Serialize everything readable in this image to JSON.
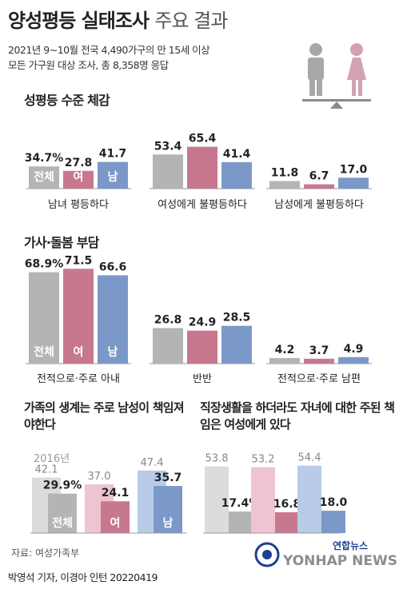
{
  "header": {
    "title_main": "양성평등 실태조사",
    "title_sub": "주요 결과",
    "line1": "2021년 9~10월 전국 4,490가구의 만 15세 이상",
    "line2": "모든 가구원 대상 조사, 총 8,358명 응답"
  },
  "sections": {
    "s1_title": "성평등 수준 체감",
    "s2_title": "가사·돌봄 부담",
    "q1_title": "가족의 생계는 주로 남성이 책임져야한다",
    "q2_title": "직장생활을 하더라도 자녀에 대한 주된 책임은 여성에게 있다"
  },
  "series_labels": [
    "전체",
    "여",
    "남"
  ],
  "colors": {
    "total": "#b4b4b4",
    "female": "#c7788f",
    "male": "#7b99c8",
    "total_light": "#dcdcdc",
    "female_light": "#efc4d1",
    "male_light": "#b9cbe7",
    "baseline": "#999999"
  },
  "chart_data": [
    {
      "type": "bar",
      "title": "성평등 수준 체감",
      "categories": [
        "남녀 평등하다",
        "여성에게 불평등하다",
        "남성에게 불평등하다"
      ],
      "series": [
        {
          "name": "전체",
          "values": [
            34.7,
            53.4,
            11.8
          ]
        },
        {
          "name": "여",
          "values": [
            27.8,
            65.4,
            6.7
          ]
        },
        {
          "name": "남",
          "values": [
            41.7,
            41.4,
            17.0
          ]
        }
      ],
      "value_labels": [
        [
          "34.7%",
          "27.8",
          "41.7"
        ],
        [
          "53.4",
          "65.4",
          "41.4"
        ],
        [
          "11.8",
          "6.7",
          "17.0"
        ]
      ]
    },
    {
      "type": "bar",
      "title": "가사·돌봄 부담",
      "categories": [
        "전적으로·주로 아내",
        "반반",
        "전적으로·주로 남편"
      ],
      "series": [
        {
          "name": "전체",
          "values": [
            68.9,
            26.8,
            4.2
          ]
        },
        {
          "name": "여",
          "values": [
            71.5,
            24.9,
            3.7
          ]
        },
        {
          "name": "남",
          "values": [
            66.6,
            28.5,
            4.9
          ]
        }
      ],
      "value_labels": [
        [
          "68.9%",
          "71.5",
          "66.6"
        ],
        [
          "26.8",
          "24.9",
          "28.5"
        ],
        [
          "4.2",
          "3.7",
          "4.9"
        ]
      ]
    },
    {
      "type": "bar",
      "title": "가족의 생계는 주로 남성이 책임져야한다",
      "legend_label": "2016년",
      "categories": [
        "전체",
        "여",
        "남"
      ],
      "series": [
        {
          "name": "2016년",
          "values": [
            42.1,
            37.0,
            47.4
          ]
        },
        {
          "values": [
            29.9,
            24.1,
            35.7
          ]
        }
      ],
      "value_labels": [
        [
          "42.1",
          "29.9%"
        ],
        [
          "37.0",
          "24.1"
        ],
        [
          "47.4",
          "35.7"
        ]
      ]
    },
    {
      "type": "bar",
      "title": "직장생활을 하더라도 자녀에 대한 주된 책임은 여성에게 있다",
      "categories": [
        "전체",
        "여",
        "남"
      ],
      "series": [
        {
          "name": "2016년",
          "values": [
            53.8,
            53.2,
            54.4
          ]
        },
        {
          "values": [
            17.4,
            16.8,
            18.0
          ]
        }
      ],
      "value_labels": [
        [
          "53.8",
          "17.4%"
        ],
        [
          "53.2",
          "16.8"
        ],
        [
          "54.4",
          "18.0"
        ]
      ]
    }
  ],
  "footer": {
    "source": "자료: 여성가족부",
    "credit": "박영석 기자, 이경아 인턴  20220419",
    "logo_ko": "연합뉴스",
    "logo_en": "YONHAP NEWS"
  },
  "icons": [
    "male-figure-icon",
    "female-figure-icon",
    "balance-scale-icon",
    "yonhap-logo-icon"
  ]
}
